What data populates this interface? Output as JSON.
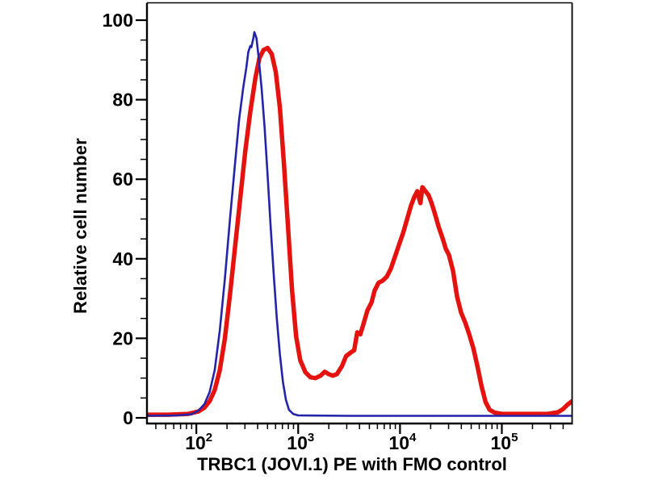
{
  "figure": {
    "background": "#ffffff"
  },
  "chart_data": {
    "type": "line",
    "subtype": "flow-cytometry-histogram-overlay",
    "xlabel": "TRBC1 (JOVI.1) PE with FMO control",
    "ylabel": "Relative cell number",
    "x_scale": "log10",
    "xlim_log10": [
      1.515,
      5.69
    ],
    "ylim": [
      0,
      104
    ],
    "grid": false,
    "legend": "none",
    "axes": {
      "color": "#000000",
      "x_major_ticks": [
        {
          "log10": 2,
          "base": "10",
          "exp": "2"
        },
        {
          "log10": 3,
          "base": "10",
          "exp": "3"
        },
        {
          "log10": 4,
          "base": "10",
          "exp": "4"
        },
        {
          "log10": 5,
          "base": "10",
          "exp": "5"
        }
      ],
      "x_minor_ticks_log10": [
        1.602,
        1.699,
        1.778,
        1.845,
        1.903,
        1.954,
        2.301,
        2.477,
        2.602,
        2.699,
        2.778,
        2.845,
        2.903,
        2.954,
        3.301,
        3.477,
        3.602,
        3.699,
        3.778,
        3.845,
        3.903,
        3.954,
        4.301,
        4.477,
        4.602,
        4.699,
        4.778,
        4.845,
        4.903,
        4.954,
        5.301,
        5.477,
        5.602
      ],
      "y_major_ticks": [
        0,
        20,
        40,
        60,
        80,
        100
      ],
      "y_minor_ticks": [
        5,
        10,
        15,
        25,
        30,
        35,
        45,
        50,
        55,
        65,
        70,
        75,
        85,
        90,
        95
      ]
    },
    "series": [
      {
        "id": "trbc1-pe-curve",
        "name": "TRBC1 (JOVI.1) PE",
        "color": "#e51310",
        "stroke_width": 5.5,
        "points_log10x_y": [
          [
            1.52,
            0.8
          ],
          [
            1.72,
            0.8
          ],
          [
            1.92,
            1.0
          ],
          [
            2.02,
            1.6
          ],
          [
            2.08,
            2.6
          ],
          [
            2.13,
            4.2
          ],
          [
            2.18,
            7
          ],
          [
            2.23,
            12
          ],
          [
            2.28,
            20
          ],
          [
            2.33,
            31
          ],
          [
            2.38,
            43
          ],
          [
            2.43,
            55
          ],
          [
            2.48,
            67
          ],
          [
            2.53,
            77
          ],
          [
            2.58,
            85.5
          ],
          [
            2.62,
            90.5
          ],
          [
            2.66,
            92.5
          ],
          [
            2.7,
            93
          ],
          [
            2.74,
            91.5
          ],
          [
            2.78,
            87
          ],
          [
            2.82,
            78
          ],
          [
            2.86,
            64
          ],
          [
            2.9,
            48
          ],
          [
            2.94,
            32
          ],
          [
            2.98,
            20.5
          ],
          [
            3.02,
            14.5
          ],
          [
            3.07,
            11.5
          ],
          [
            3.12,
            10.2
          ],
          [
            3.17,
            10
          ],
          [
            3.22,
            10.6
          ],
          [
            3.26,
            11.6
          ],
          [
            3.3,
            11
          ],
          [
            3.34,
            10.6
          ],
          [
            3.38,
            11
          ],
          [
            3.43,
            13
          ],
          [
            3.47,
            15.5
          ],
          [
            3.52,
            16.5
          ],
          [
            3.55,
            17
          ],
          [
            3.58,
            21.5
          ],
          [
            3.61,
            21
          ],
          [
            3.64,
            23.5
          ],
          [
            3.68,
            27
          ],
          [
            3.72,
            29
          ],
          [
            3.75,
            32
          ],
          [
            3.79,
            34
          ],
          [
            3.83,
            34.5
          ],
          [
            3.87,
            35.5
          ],
          [
            3.91,
            37.5
          ],
          [
            3.95,
            40.5
          ],
          [
            3.99,
            43.5
          ],
          [
            4.03,
            46.5
          ],
          [
            4.07,
            50
          ],
          [
            4.11,
            53.5
          ],
          [
            4.14,
            55.5
          ],
          [
            4.17,
            57
          ],
          [
            4.2,
            54
          ],
          [
            4.22,
            58
          ],
          [
            4.25,
            57
          ],
          [
            4.28,
            56
          ],
          [
            4.31,
            54
          ],
          [
            4.34,
            51.5
          ],
          [
            4.38,
            48
          ],
          [
            4.42,
            45
          ],
          [
            4.45,
            42.5
          ],
          [
            4.48,
            41
          ],
          [
            4.52,
            37
          ],
          [
            4.56,
            30.5
          ],
          [
            4.6,
            26.5
          ],
          [
            4.64,
            24
          ],
          [
            4.68,
            21
          ],
          [
            4.72,
            17.5
          ],
          [
            4.76,
            13
          ],
          [
            4.8,
            8
          ],
          [
            4.84,
            4
          ],
          [
            4.88,
            2
          ],
          [
            4.93,
            1.3
          ],
          [
            5.0,
            1
          ],
          [
            5.15,
            1
          ],
          [
            5.3,
            1
          ],
          [
            5.45,
            1
          ],
          [
            5.55,
            1.4
          ],
          [
            5.6,
            2.2
          ],
          [
            5.64,
            3.2
          ],
          [
            5.69,
            4.2
          ]
        ]
      },
      {
        "id": "fmo-control-curve",
        "name": "FMO control",
        "color": "#2424a8",
        "stroke_width": 2.6,
        "points_log10x_y": [
          [
            1.52,
            0.5
          ],
          [
            1.8,
            0.6
          ],
          [
            1.95,
            0.9
          ],
          [
            2.02,
            1.8
          ],
          [
            2.08,
            3.5
          ],
          [
            2.13,
            6.5
          ],
          [
            2.18,
            12
          ],
          [
            2.23,
            22
          ],
          [
            2.28,
            35
          ],
          [
            2.33,
            50
          ],
          [
            2.38,
            64
          ],
          [
            2.42,
            75
          ],
          [
            2.46,
            83
          ],
          [
            2.49,
            88
          ],
          [
            2.51,
            92
          ],
          [
            2.53,
            93.5
          ],
          [
            2.54,
            93.2
          ],
          [
            2.56,
            95.5
          ],
          [
            2.57,
            97
          ],
          [
            2.59,
            95.5
          ],
          [
            2.61,
            91
          ],
          [
            2.64,
            83
          ],
          [
            2.67,
            73
          ],
          [
            2.7,
            61
          ],
          [
            2.73,
            48
          ],
          [
            2.76,
            36
          ],
          [
            2.79,
            25
          ],
          [
            2.82,
            16
          ],
          [
            2.85,
            9
          ],
          [
            2.88,
            4.5
          ],
          [
            2.91,
            2
          ],
          [
            2.95,
            1
          ],
          [
            3.0,
            0.6
          ],
          [
            3.5,
            0.5
          ],
          [
            4.0,
            0.5
          ],
          [
            4.5,
            0.5
          ],
          [
            5.0,
            0.5
          ],
          [
            5.4,
            0.5
          ],
          [
            5.69,
            0.5
          ]
        ]
      }
    ]
  }
}
